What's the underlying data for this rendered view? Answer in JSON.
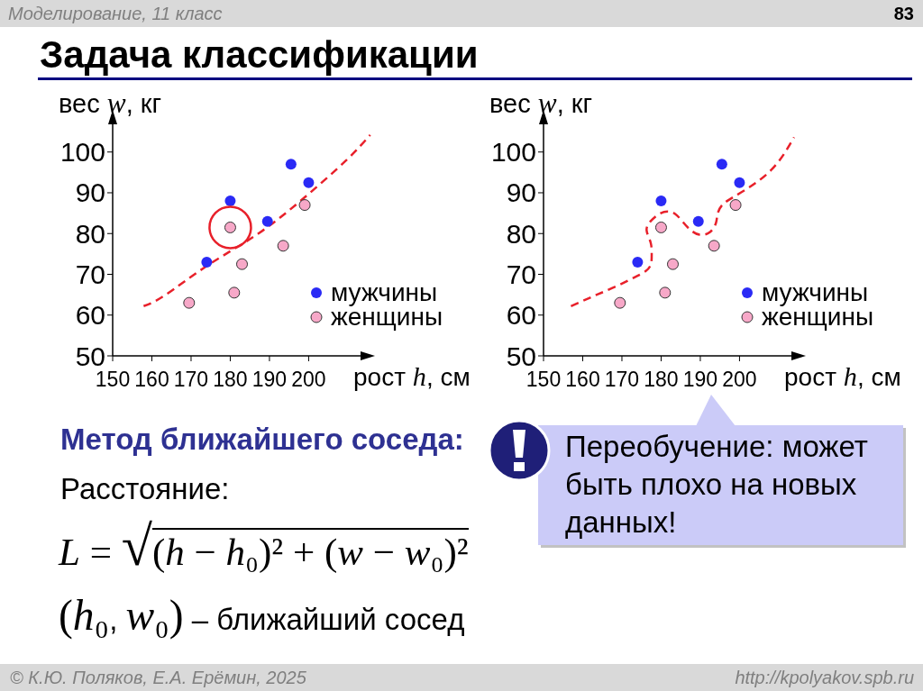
{
  "chart_data": [
    {
      "type": "other",
      "title": "Задача классификации",
      "annotations": [
        "Моделирование, 11 класс",
        "83",
        "© К.Ю. Поляков, Е.А. Ерёмин, 2025",
        "http://kpolyakov.spb.ru"
      ]
    },
    {
      "type": "scatter",
      "xlabel": "рост h, см",
      "ylabel": "вес w, кг",
      "xlim": [
        150,
        216
      ],
      "ylim": [
        50,
        109
      ],
      "xticks": [
        150,
        160,
        170,
        180,
        190,
        200
      ],
      "yticks": [
        50,
        60,
        70,
        80,
        90,
        100
      ],
      "line_style": "dashed",
      "legend": "bottom right",
      "series": [
        {
          "name": "мужчины",
          "color": "#2a2af5",
          "marker": "circle",
          "x": [
            174,
            180,
            189.5,
            195.5,
            200
          ],
          "values": [
            73,
            88,
            83,
            97,
            92.5
          ]
        },
        {
          "name": "женщины",
          "color": "#f7a8c8",
          "marker": "circle",
          "x": [
            169.5,
            180,
            181,
            183,
            193.5,
            199
          ],
          "values": [
            63,
            81.5,
            65.5,
            72.5,
            77,
            87
          ]
        },
        {
          "type": "line",
          "color": "#e8202a",
          "x": [
            157.9,
            163.4,
            174.1,
            186.4,
            197.9,
            209.4,
            215.7
          ],
          "values": [
            62.2,
            64.9,
            72.1,
            79.5,
            88,
            97.8,
            104.2
          ]
        }
      ]
    },
    {
      "type": "scatter",
      "xlabel": "рост h, см",
      "ylabel": "вес w, кг",
      "xlim": [
        150,
        216
      ],
      "ylim": [
        50,
        109
      ],
      "xticks": [
        150,
        160,
        170,
        180,
        190,
        200
      ],
      "yticks": [
        50,
        60,
        70,
        80,
        90,
        100
      ],
      "line_style": "dashed",
      "legend": "bottom right",
      "annotations": [
        "Переобучение: может быть плохо на новых данных!"
      ],
      "series": [
        {
          "name": "мужчины",
          "color": "#2a2af5",
          "marker": "circle",
          "x": [
            174,
            180,
            189.5,
            195.5,
            200
          ],
          "values": [
            73,
            88,
            83,
            97,
            92.5
          ]
        },
        {
          "name": "женщины",
          "color": "#f7a8c8",
          "marker": "circle",
          "x": [
            169.5,
            180,
            181,
            183,
            193.5,
            199
          ],
          "values": [
            63,
            81.5,
            65.5,
            72.5,
            77,
            87
          ]
        },
        {
          "type": "line",
          "color": "#e8202a",
          "x": [
            157,
            162.4,
            167.7,
            173.1,
            176.1,
            177.4,
            177.6,
            177.3,
            176.3,
            177.3,
            179.5,
            181.8,
            184.1,
            186.8,
            189.8,
            192.5,
            194,
            194.4,
            195.6,
            198.2,
            202.1,
            205.1,
            208.2,
            211.2,
            213.9
          ],
          "values": [
            62.2,
            64.5,
            66.7,
            69.2,
            70.8,
            72.5,
            75,
            77.9,
            80.8,
            83,
            84.8,
            85.4,
            84.4,
            81.5,
            79.7,
            80.4,
            82.6,
            84.8,
            87,
            88.8,
            91.1,
            93.1,
            95.7,
            99.3,
            103.6
          ]
        }
      ]
    },
    {
      "type": "other",
      "annotations": [
        "Метод ближайшего соседа:",
        "Расстояние:",
        "L = √(h − h₀)² + (w − w₀)²",
        "(h₀, w₀) – ближайший сосед"
      ]
    }
  ]
}
